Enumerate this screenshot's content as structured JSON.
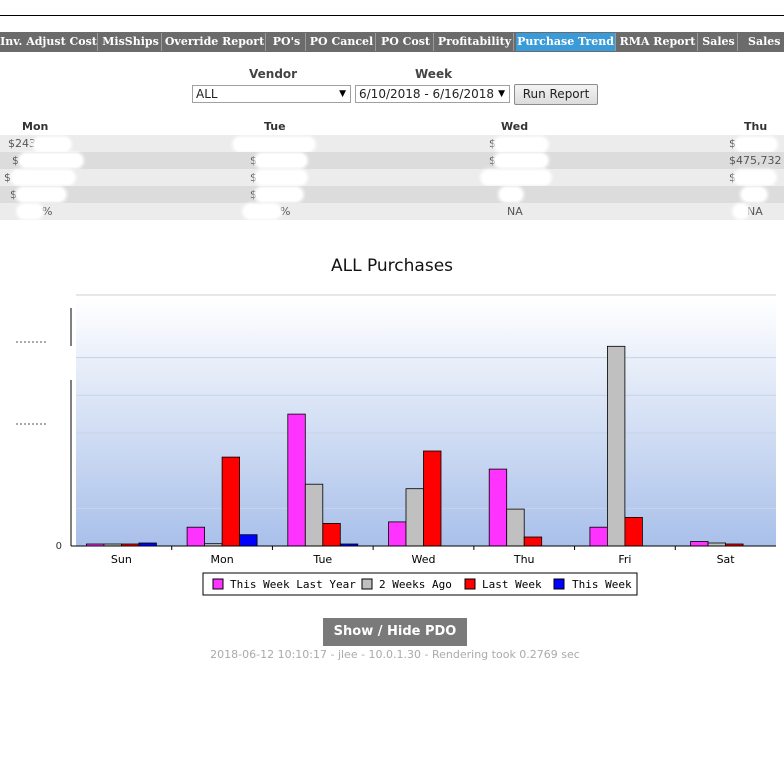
{
  "tabs": [
    {
      "label": "Inv. Adjust Cost"
    },
    {
      "label": "MisShips"
    },
    {
      "label": "Override Report"
    },
    {
      "label": "PO's"
    },
    {
      "label": "PO Cancel"
    },
    {
      "label": "PO Cost"
    },
    {
      "label": "Profitability"
    },
    {
      "label": "Purchase Trend",
      "active": true
    },
    {
      "label": "RMA Report"
    },
    {
      "label": "Sales"
    },
    {
      "label": "Sales T"
    }
  ],
  "filters": {
    "vendor_label": "Vendor",
    "vendor_value": "ALL",
    "week_label": "Week",
    "week_value": "6/10/2018 - 6/16/2018",
    "run_label": "Run Report"
  },
  "summary_table": {
    "headers": [
      "Mon",
      "Tue",
      "Wed",
      "Thu"
    ],
    "rows": [
      [
        "$243,192",
        "",
        "$",
        "$"
      ],
      [
        "$",
        "$",
        "$",
        "$475,732"
      ],
      [
        "$",
        "$",
        "",
        "$"
      ],
      [
        "$",
        "$",
        "",
        ""
      ],
      [
        "%",
        "%",
        "NA",
        "NA"
      ]
    ]
  },
  "chart_data": {
    "type": "bar",
    "title": "ALL Purchases",
    "categories": [
      "Sun",
      "Mon",
      "Tue",
      "Wed",
      "Thu",
      "Fri",
      "Sat"
    ],
    "series": [
      {
        "name": "This Week Last Year",
        "color": "#ff33ff",
        "values": [
          2,
          25,
          175,
          32,
          102,
          25,
          6
        ]
      },
      {
        "name": "2 Weeks Ago",
        "color": "#c0c0c0",
        "values": [
          1,
          3,
          82,
          76,
          49,
          265,
          4
        ]
      },
      {
        "name": "Last Week",
        "color": "#ff0000",
        "values": [
          2,
          118,
          30,
          126,
          12,
          38,
          2
        ]
      },
      {
        "name": "This Week",
        "color": "#0000ff",
        "values": [
          4,
          15,
          2,
          0,
          0,
          0,
          0
        ]
      }
    ],
    "ylim": [
      0,
      300
    ],
    "ytick_labels": [
      "0"
    ],
    "grid": true,
    "legend_position": "bottom"
  },
  "actions": {
    "pdo_label": "Show / Hide PDO"
  },
  "footer": {
    "text": "2018-06-12 10:10:17 - jlee - 10.0.1.30 - Rendering took 0.2769 sec"
  }
}
